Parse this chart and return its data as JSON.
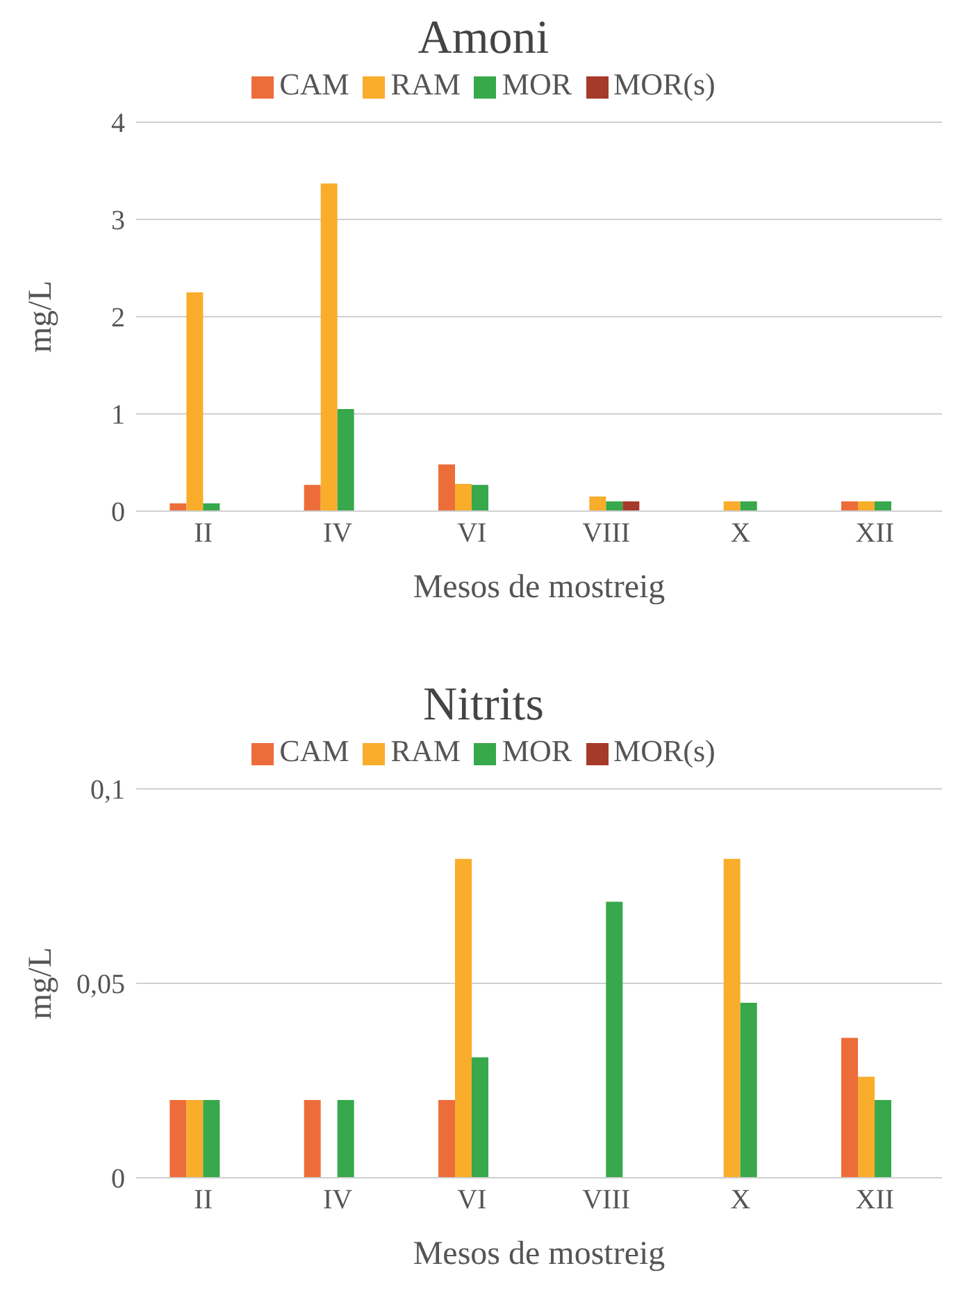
{
  "chart_data": [
    {
      "type": "bar",
      "title": "Amoni",
      "xlabel": "Mesos de mostreig",
      "ylabel": "mg/L",
      "categories": [
        "II",
        "IV",
        "VI",
        "VIII",
        "X",
        "XII"
      ],
      "series": [
        {
          "name": "CAM",
          "color": "#ed6d3a",
          "values": [
            0.08,
            0.27,
            0.48,
            null,
            null,
            0.1
          ]
        },
        {
          "name": "RAM",
          "color": "#f9ad2a",
          "values": [
            2.25,
            3.37,
            0.28,
            0.15,
            0.1,
            0.1
          ]
        },
        {
          "name": "MOR",
          "color": "#37a84b",
          "values": [
            0.08,
            1.05,
            0.27,
            0.1,
            0.1,
            0.1
          ]
        },
        {
          "name": "MOR(s)",
          "color": "#a5392a",
          "values": [
            null,
            null,
            null,
            0.1,
            null,
            null
          ]
        }
      ],
      "ylim": [
        0,
        4
      ],
      "yticks": [
        0,
        1,
        2,
        3,
        4
      ],
      "grid": "y",
      "legend": "top"
    },
    {
      "type": "bar",
      "title": "Nitrits",
      "xlabel": "Mesos de mostreig",
      "ylabel": "mg/L",
      "categories": [
        "II",
        "IV",
        "VI",
        "VIII",
        "X",
        "XII"
      ],
      "series": [
        {
          "name": "CAM",
          "color": "#ed6d3a",
          "values": [
            0.02,
            0.02,
            0.02,
            null,
            null,
            0.036
          ]
        },
        {
          "name": "RAM",
          "color": "#f9ad2a",
          "values": [
            0.02,
            null,
            0.082,
            null,
            0.082,
            0.026
          ]
        },
        {
          "name": "MOR",
          "color": "#37a84b",
          "values": [
            0.02,
            0.02,
            0.031,
            0.071,
            0.045,
            0.02
          ]
        },
        {
          "name": "MOR(s)",
          "color": "#a5392a",
          "values": [
            null,
            null,
            null,
            null,
            null,
            null
          ]
        }
      ],
      "ylim": [
        0,
        0.1
      ],
      "yticks": [
        0,
        {
          "value": 0.05,
          "label": "0,05"
        },
        {
          "value": 0.1,
          "label": "0,1"
        }
      ],
      "grid": "y",
      "legend": "top"
    }
  ]
}
